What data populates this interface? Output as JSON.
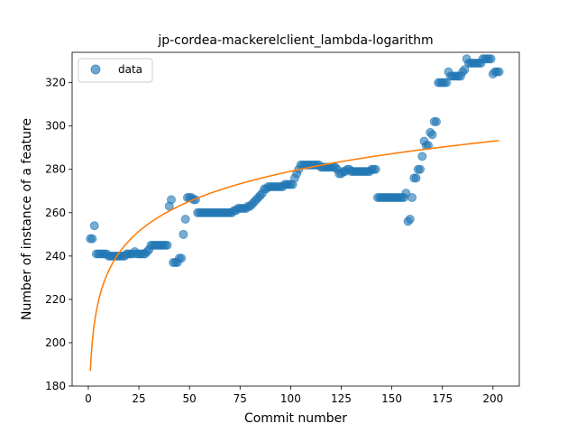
{
  "chart_data": {
    "type": "scatter",
    "title": "jp-cordea-mackerelclient_lambda-logarithm",
    "xlabel": "Commit number",
    "ylabel": "Number of instance of a feature",
    "xlim": [
      -8,
      213
    ],
    "ylim": [
      180,
      334
    ],
    "xticks": [
      0,
      25,
      50,
      75,
      100,
      125,
      150,
      175,
      200
    ],
    "yticks": [
      180,
      200,
      220,
      240,
      260,
      280,
      300,
      320
    ],
    "grid": false,
    "legend": {
      "placement": "top-left",
      "entries": [
        "data"
      ]
    },
    "colors": {
      "data": "#1f77b4",
      "fit": "#ff7f0e"
    },
    "series": [
      {
        "name": "data",
        "kind": "scatter",
        "points": [
          [
            1,
            248
          ],
          [
            2,
            248
          ],
          [
            3,
            254
          ],
          [
            4,
            241
          ],
          [
            5,
            241
          ],
          [
            6,
            241
          ],
          [
            7,
            241
          ],
          [
            8,
            241
          ],
          [
            9,
            241
          ],
          [
            10,
            240
          ],
          [
            11,
            240
          ],
          [
            12,
            240
          ],
          [
            13,
            240
          ],
          [
            14,
            240
          ],
          [
            15,
            240
          ],
          [
            16,
            240
          ],
          [
            17,
            240
          ],
          [
            18,
            240
          ],
          [
            19,
            241
          ],
          [
            20,
            241
          ],
          [
            21,
            241
          ],
          [
            22,
            241
          ],
          [
            23,
            242
          ],
          [
            24,
            241
          ],
          [
            25,
            241
          ],
          [
            26,
            241
          ],
          [
            27,
            241
          ],
          [
            28,
            241
          ],
          [
            29,
            242
          ],
          [
            30,
            243
          ],
          [
            31,
            245
          ],
          [
            32,
            245
          ],
          [
            33,
            245
          ],
          [
            34,
            245
          ],
          [
            35,
            245
          ],
          [
            36,
            245
          ],
          [
            37,
            245
          ],
          [
            38,
            245
          ],
          [
            39,
            245
          ],
          [
            40,
            263
          ],
          [
            41,
            266
          ],
          [
            42,
            237
          ],
          [
            43,
            237
          ],
          [
            44,
            237
          ],
          [
            45,
            239
          ],
          [
            46,
            239
          ],
          [
            47,
            250
          ],
          [
            48,
            257
          ],
          [
            49,
            267
          ],
          [
            50,
            267
          ],
          [
            51,
            267
          ],
          [
            52,
            266
          ],
          [
            53,
            266
          ],
          [
            54,
            260
          ],
          [
            55,
            260
          ],
          [
            56,
            260
          ],
          [
            57,
            260
          ],
          [
            58,
            260
          ],
          [
            59,
            260
          ],
          [
            60,
            260
          ],
          [
            61,
            260
          ],
          [
            62,
            260
          ],
          [
            63,
            260
          ],
          [
            64,
            260
          ],
          [
            65,
            260
          ],
          [
            66,
            260
          ],
          [
            67,
            260
          ],
          [
            68,
            260
          ],
          [
            69,
            260
          ],
          [
            70,
            260
          ],
          [
            71,
            260
          ],
          [
            72,
            261
          ],
          [
            73,
            261
          ],
          [
            74,
            262
          ],
          [
            75,
            262
          ],
          [
            76,
            262
          ],
          [
            77,
            262
          ],
          [
            78,
            262
          ],
          [
            79,
            263
          ],
          [
            80,
            263
          ],
          [
            81,
            264
          ],
          [
            82,
            265
          ],
          [
            83,
            266
          ],
          [
            84,
            267
          ],
          [
            85,
            268
          ],
          [
            86,
            269
          ],
          [
            87,
            271
          ],
          [
            88,
            271
          ],
          [
            89,
            272
          ],
          [
            90,
            272
          ],
          [
            91,
            272
          ],
          [
            92,
            272
          ],
          [
            93,
            272
          ],
          [
            94,
            272
          ],
          [
            95,
            272
          ],
          [
            96,
            272
          ],
          [
            97,
            273
          ],
          [
            98,
            273
          ],
          [
            99,
            273
          ],
          [
            100,
            273
          ],
          [
            101,
            273
          ],
          [
            102,
            276
          ],
          [
            103,
            278
          ],
          [
            104,
            280
          ],
          [
            105,
            282
          ],
          [
            106,
            282
          ],
          [
            107,
            282
          ],
          [
            108,
            282
          ],
          [
            109,
            282
          ],
          [
            110,
            282
          ],
          [
            111,
            282
          ],
          [
            112,
            282
          ],
          [
            113,
            282
          ],
          [
            114,
            282
          ],
          [
            115,
            281
          ],
          [
            116,
            281
          ],
          [
            117,
            281
          ],
          [
            118,
            281
          ],
          [
            119,
            281
          ],
          [
            120,
            281
          ],
          [
            121,
            281
          ],
          [
            122,
            281
          ],
          [
            123,
            280
          ],
          [
            124,
            278
          ],
          [
            125,
            278
          ],
          [
            126,
            279
          ],
          [
            127,
            279
          ],
          [
            128,
            280
          ],
          [
            129,
            280
          ],
          [
            130,
            279
          ],
          [
            131,
            279
          ],
          [
            132,
            279
          ],
          [
            133,
            279
          ],
          [
            134,
            279
          ],
          [
            135,
            279
          ],
          [
            136,
            279
          ],
          [
            137,
            279
          ],
          [
            138,
            279
          ],
          [
            139,
            279
          ],
          [
            140,
            280
          ],
          [
            141,
            280
          ],
          [
            142,
            280
          ],
          [
            143,
            267
          ],
          [
            144,
            267
          ],
          [
            145,
            267
          ],
          [
            146,
            267
          ],
          [
            147,
            267
          ],
          [
            148,
            267
          ],
          [
            149,
            267
          ],
          [
            150,
            267
          ],
          [
            151,
            267
          ],
          [
            152,
            267
          ],
          [
            153,
            267
          ],
          [
            154,
            267
          ],
          [
            155,
            267
          ],
          [
            156,
            267
          ],
          [
            157,
            269
          ],
          [
            158,
            256
          ],
          [
            159,
            257
          ],
          [
            160,
            267
          ],
          [
            161,
            276
          ],
          [
            162,
            276
          ],
          [
            163,
            280
          ],
          [
            164,
            280
          ],
          [
            165,
            286
          ],
          [
            166,
            293
          ],
          [
            167,
            291
          ],
          [
            168,
            291
          ],
          [
            169,
            297
          ],
          [
            170,
            296
          ],
          [
            171,
            302
          ],
          [
            172,
            302
          ],
          [
            173,
            320
          ],
          [
            174,
            320
          ],
          [
            175,
            320
          ],
          [
            176,
            320
          ],
          [
            177,
            320
          ],
          [
            178,
            325
          ],
          [
            179,
            323
          ],
          [
            180,
            323
          ],
          [
            181,
            323
          ],
          [
            182,
            323
          ],
          [
            183,
            323
          ],
          [
            184,
            323
          ],
          [
            185,
            325
          ],
          [
            186,
            326
          ],
          [
            187,
            331
          ],
          [
            188,
            329
          ],
          [
            189,
            329
          ],
          [
            190,
            329
          ],
          [
            191,
            329
          ],
          [
            192,
            329
          ],
          [
            193,
            329
          ],
          [
            194,
            329
          ],
          [
            195,
            331
          ],
          [
            196,
            331
          ],
          [
            197,
            331
          ],
          [
            198,
            331
          ],
          [
            199,
            331
          ],
          [
            200,
            324
          ],
          [
            201,
            325
          ],
          [
            202,
            325
          ],
          [
            203,
            325
          ]
        ]
      },
      {
        "name": "",
        "kind": "line",
        "fit": {
          "a": 187,
          "b": 20
        }
      }
    ]
  }
}
